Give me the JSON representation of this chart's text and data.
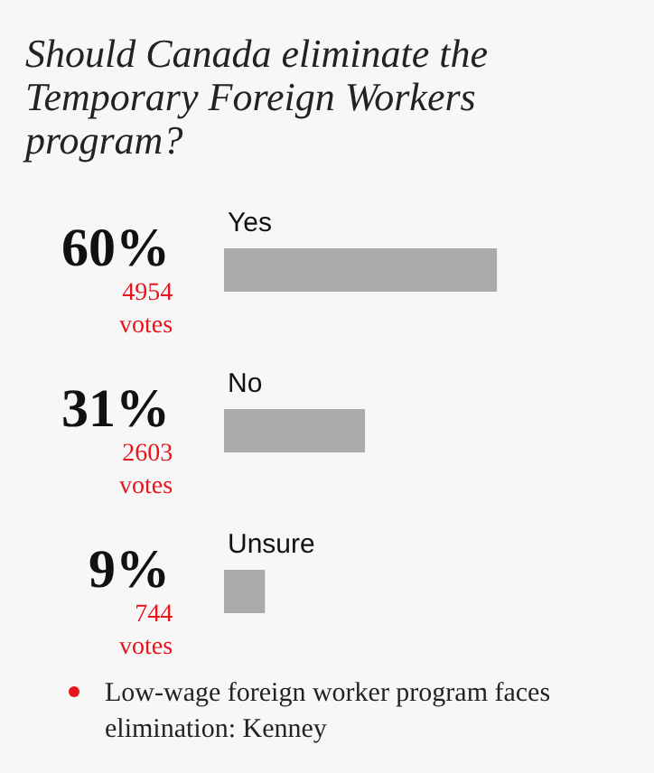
{
  "chart_data": {
    "type": "bar",
    "orientation": "horizontal",
    "title": "Should Canada eliminate the Temporary Foreign Workers program?",
    "categories": [
      "Yes",
      "No",
      "Unsure"
    ],
    "values": [
      60,
      31,
      9
    ],
    "value_labels": [
      "60%",
      "31%",
      "9%"
    ],
    "color": "#aaaaaa",
    "annotations": [
      "4954 votes",
      "2603 votes",
      "744 votes",
      "Low-wage foreign worker program faces elimination: Kenney"
    ]
  }
}
